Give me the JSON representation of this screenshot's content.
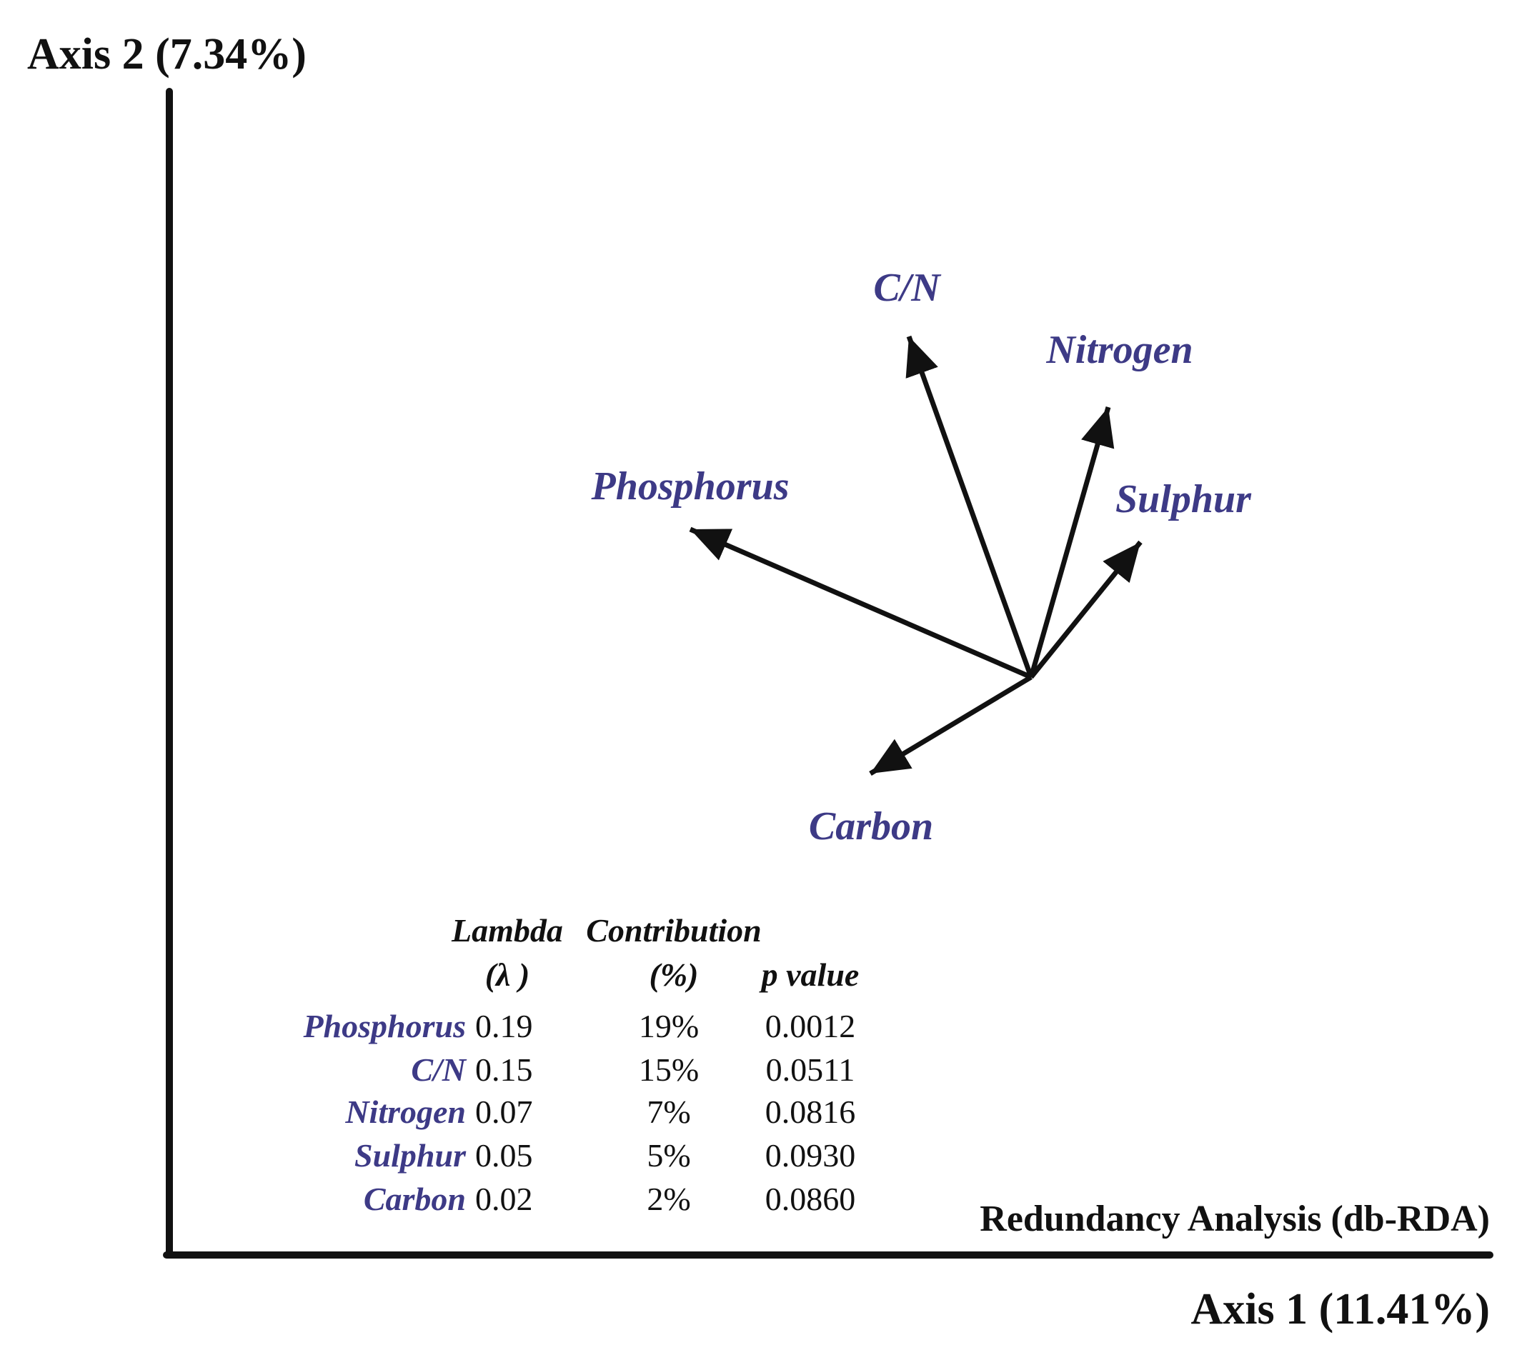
{
  "chart_data": {
    "type": "biplot",
    "title": "Redundancy Analysis (db-RDA)",
    "xlabel": "Axis 1 (11.41%)",
    "ylabel": "Axis 2 (7.34%)",
    "label_color": "#3d3a86",
    "line_color": "#111111",
    "vectors": [
      {
        "name": "C/N",
        "x": -0.19,
        "y": 0.53
      },
      {
        "name": "Nitrogen",
        "x": 0.12,
        "y": 0.42
      },
      {
        "name": "Phosphorus",
        "x": -0.53,
        "y": 0.23
      },
      {
        "name": "Sulphur",
        "x": 0.17,
        "y": 0.21
      },
      {
        "name": "Carbon",
        "x": -0.25,
        "y": -0.15
      }
    ],
    "table": {
      "headers": {
        "lambda_1": "Lambda",
        "lambda_2": "(λ )",
        "contribution_1": "Contribution",
        "contribution_2": "(%)",
        "p_value": "p value"
      },
      "rows": [
        {
          "name": "Phosphorus",
          "lambda": "0.19",
          "contribution": "19%",
          "p": "0.0012"
        },
        {
          "name": "C/N",
          "lambda": "0.15",
          "contribution": "15%",
          "p": "0.0511"
        },
        {
          "name": "Nitrogen",
          "lambda": "0.07",
          "contribution": "7%",
          "p": "0.0816"
        },
        {
          "name": "Sulphur",
          "lambda": "0.05",
          "contribution": "5%",
          "p": "0.0930"
        },
        {
          "name": "Carbon",
          "lambda": "0.02",
          "contribution": "2%",
          "p": "0.0860"
        }
      ]
    }
  }
}
